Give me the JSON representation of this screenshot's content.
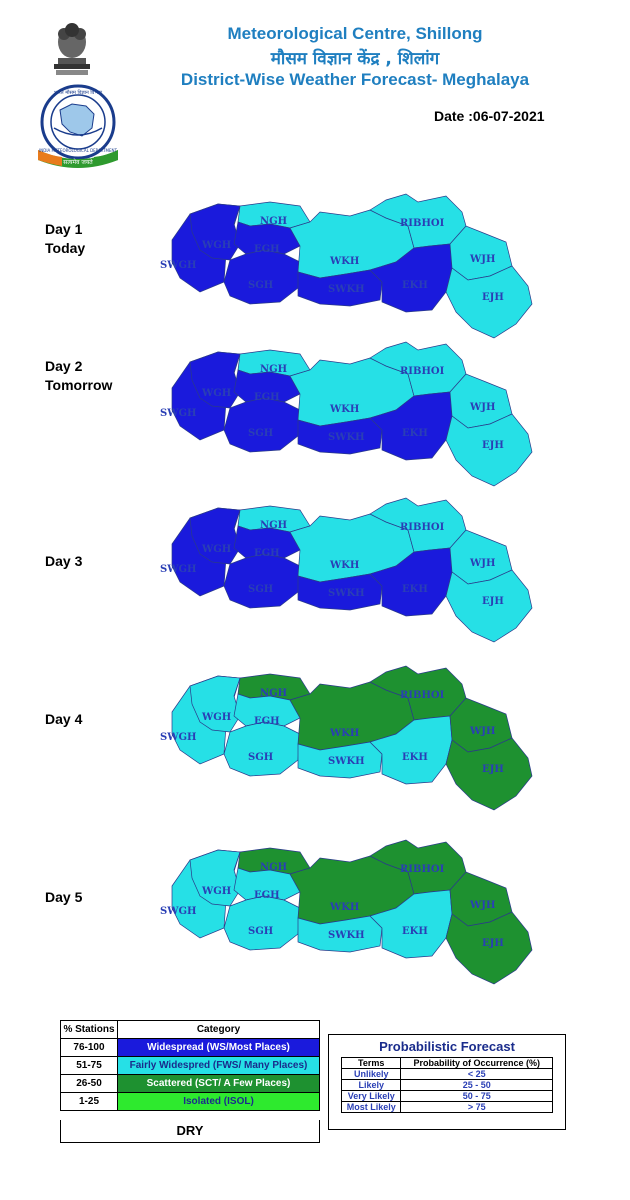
{
  "header": {
    "title_en": "Meteorological Centre, Shillong",
    "title_hi": "मौसम विज्ञान केंद्र , शिलांग",
    "subtitle": "District-Wise Weather Forecast- Meghalaya",
    "date_label": "Date :",
    "date_value": "06-07-2021",
    "logo_hi_top": "भारत मौसम विज्ञान विभाग",
    "logo_en": "INDIA METEOROLOGICAL DEPARTMENT",
    "logo_ribbon": "सत्यमेव जयते"
  },
  "colors": {
    "ws": "#1a1adc",
    "fws": "#26e0e6",
    "sct": "#1e9130",
    "isol": "#2eea2e",
    "dry": "#ffffff",
    "title": "#1f7fc0"
  },
  "district_labels": {
    "swkh_west": "SWGH",
    "wgh": "WGH",
    "ngh": "NGH",
    "egh": "EGH",
    "sgh": "SGH",
    "wkh": "WKH",
    "swkh": "SWKH",
    "ribhoi": "RIBHOI",
    "ekh": "EKH",
    "wjh": "WJH",
    "ejh": "EJH"
  },
  "days": [
    {
      "label": "Day 1",
      "sub": "Today",
      "map": {
        "swgh": "ws",
        "wgh": "ws",
        "ngh": "fws",
        "egh": "ws",
        "sgh": "ws",
        "wkh": "fws",
        "swkh": "ws",
        "ribhoi": "fws",
        "ekh": "ws",
        "wjh": "fws",
        "ejh": "fws"
      }
    },
    {
      "label": "Day 2",
      "sub": "Tomorrow",
      "map": {
        "swgh": "ws",
        "wgh": "ws",
        "ngh": "fws",
        "egh": "ws",
        "sgh": "ws",
        "wkh": "fws",
        "swkh": "ws",
        "ribhoi": "fws",
        "ekh": "ws",
        "wjh": "fws",
        "ejh": "fws"
      }
    },
    {
      "label": "Day 3",
      "sub": "",
      "map": {
        "swgh": "ws",
        "wgh": "ws",
        "ngh": "fws",
        "egh": "ws",
        "sgh": "ws",
        "wkh": "fws",
        "swkh": "ws",
        "ribhoi": "fws",
        "ekh": "ws",
        "wjh": "fws",
        "ejh": "fws"
      }
    },
    {
      "label": "Day 4",
      "sub": "",
      "map": {
        "swgh": "fws",
        "wgh": "fws",
        "ngh": "sct",
        "egh": "fws",
        "sgh": "fws",
        "wkh": "sct",
        "swkh": "fws",
        "ribhoi": "sct",
        "ekh": "fws",
        "wjh": "sct",
        "ejh": "sct"
      }
    },
    {
      "label": "Day 5",
      "sub": "",
      "map": {
        "swgh": "fws",
        "wgh": "fws",
        "ngh": "sct",
        "egh": "fws",
        "sgh": "fws",
        "wkh": "sct",
        "swkh": "fws",
        "ribhoi": "sct",
        "ekh": "fws",
        "wjh": "sct",
        "ejh": "sct"
      }
    }
  ],
  "legend": {
    "col1": "% Stations",
    "col2": "Category",
    "rows": [
      {
        "pct": "76-100",
        "cat": "Widespread (WS/Most Places)",
        "key": "ws",
        "text_color": "#ffffff"
      },
      {
        "pct": "51-75",
        "cat": "Fairly Widespred (FWS/ Many Places)",
        "key": "fws",
        "text_color": "#1a2c8c"
      },
      {
        "pct": "26-50",
        "cat": "Scattered (SCT/ A Few  Places)",
        "key": "sct",
        "text_color": "#ffffff"
      },
      {
        "pct": "1-25",
        "cat": "Isolated (ISOL)",
        "key": "isol",
        "text_color": "#1a2c8c"
      }
    ],
    "dry": "DRY"
  },
  "probabilistic": {
    "title": "Probabilistic  Forecast",
    "col1": "Terms",
    "col2": "Probability of Occurrence (%)",
    "rows": [
      {
        "term": "Unlikely",
        "prob": "< 25"
      },
      {
        "term": "Likely",
        "prob": "25 - 50"
      },
      {
        "term": "Very Likely",
        "prob": "50 - 75"
      },
      {
        "term": "Most Likely",
        "prob": "> 75"
      }
    ]
  }
}
